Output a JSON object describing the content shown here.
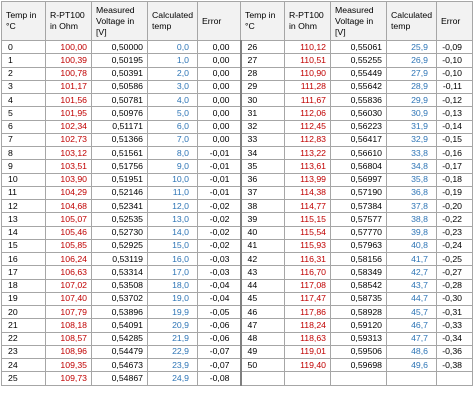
{
  "headers": [
    "Temp in °C",
    "R-PT100 in Ohm",
    "Measured Voltage in [V]",
    "Calculated temp",
    "Error",
    "Temp in °C",
    "R-PT100 in Ohm",
    "Measured Voltage in [V]",
    "Calculated temp",
    "Error"
  ],
  "colors": {
    "resistance": "#c00000",
    "calculated": "#2e75b6",
    "border": "#a6a6a6",
    "header_bg": "#f2f2f2"
  },
  "left_rows": [
    [
      "0",
      "100,00",
      "0,50000",
      "0,0",
      "0,00"
    ],
    [
      "1",
      "100,39",
      "0,50195",
      "1,0",
      "0,00"
    ],
    [
      "2",
      "100,78",
      "0,50391",
      "2,0",
      "0,00"
    ],
    [
      "3",
      "101,17",
      "0,50586",
      "3,0",
      "0,00"
    ],
    [
      "4",
      "101,56",
      "0,50781",
      "4,0",
      "0,00"
    ],
    [
      "5",
      "101,95",
      "0,50976",
      "5,0",
      "0,00"
    ],
    [
      "6",
      "102,34",
      "0,51171",
      "6,0",
      "0,00"
    ],
    [
      "7",
      "102,73",
      "0,51366",
      "7,0",
      "0,00"
    ],
    [
      "8",
      "103,12",
      "0,51561",
      "8,0",
      "-0,01"
    ],
    [
      "9",
      "103,51",
      "0,51756",
      "9,0",
      "-0,01"
    ],
    [
      "10",
      "103,90",
      "0,51951",
      "10,0",
      "-0,01"
    ],
    [
      "11",
      "104,29",
      "0,52146",
      "11,0",
      "-0,01"
    ],
    [
      "12",
      "104,68",
      "0,52341",
      "12,0",
      "-0,02"
    ],
    [
      "13",
      "105,07",
      "0,52535",
      "13,0",
      "-0,02"
    ],
    [
      "14",
      "105,46",
      "0,52730",
      "14,0",
      "-0,02"
    ],
    [
      "15",
      "105,85",
      "0,52925",
      "15,0",
      "-0,02"
    ],
    [
      "16",
      "106,24",
      "0,53119",
      "16,0",
      "-0,03"
    ],
    [
      "17",
      "106,63",
      "0,53314",
      "17,0",
      "-0,03"
    ],
    [
      "18",
      "107,02",
      "0,53508",
      "18,0",
      "-0,04"
    ],
    [
      "19",
      "107,40",
      "0,53702",
      "19,0",
      "-0,04"
    ],
    [
      "20",
      "107,79",
      "0,53896",
      "19,9",
      "-0,05"
    ],
    [
      "21",
      "108,18",
      "0,54091",
      "20,9",
      "-0,06"
    ],
    [
      "22",
      "108,57",
      "0,54285",
      "21,9",
      "-0,06"
    ],
    [
      "23",
      "108,96",
      "0,54479",
      "22,9",
      "-0,07"
    ],
    [
      "24",
      "109,35",
      "0,54673",
      "23,9",
      "-0,07"
    ],
    [
      "25",
      "109,73",
      "0,54867",
      "24,9",
      "-0,08"
    ]
  ],
  "right_rows": [
    [
      "26",
      "110,12",
      "0,55061",
      "25,9",
      "-0,09"
    ],
    [
      "27",
      "110,51",
      "0,55255",
      "26,9",
      "-0,10"
    ],
    [
      "28",
      "110,90",
      "0,55449",
      "27,9",
      "-0,10"
    ],
    [
      "29",
      "111,28",
      "0,55642",
      "28,9",
      "-0,11"
    ],
    [
      "30",
      "111,67",
      "0,55836",
      "29,9",
      "-0,12"
    ],
    [
      "31",
      "112,06",
      "0,56030",
      "30,9",
      "-0,13"
    ],
    [
      "32",
      "112,45",
      "0,56223",
      "31,9",
      "-0,14"
    ],
    [
      "33",
      "112,83",
      "0,56417",
      "32,9",
      "-0,15"
    ],
    [
      "34",
      "113,22",
      "0,56610",
      "33,8",
      "-0,16"
    ],
    [
      "35",
      "113,61",
      "0,56804",
      "34,8",
      "-0,17"
    ],
    [
      "36",
      "113,99",
      "0,56997",
      "35,8",
      "-0,18"
    ],
    [
      "37",
      "114,38",
      "0,57190",
      "36,8",
      "-0,19"
    ],
    [
      "38",
      "114,77",
      "0,57384",
      "37,8",
      "-0,20"
    ],
    [
      "39",
      "115,15",
      "0,57577",
      "38,8",
      "-0,22"
    ],
    [
      "40",
      "115,54",
      "0,57770",
      "39,8",
      "-0,23"
    ],
    [
      "41",
      "115,93",
      "0,57963",
      "40,8",
      "-0,24"
    ],
    [
      "42",
      "116,31",
      "0,58156",
      "41,7",
      "-0,25"
    ],
    [
      "43",
      "116,70",
      "0,58349",
      "42,7",
      "-0,27"
    ],
    [
      "44",
      "117,08",
      "0,58542",
      "43,7",
      "-0,28"
    ],
    [
      "45",
      "117,47",
      "0,58735",
      "44,7",
      "-0,30"
    ],
    [
      "46",
      "117,86",
      "0,58928",
      "45,7",
      "-0,31"
    ],
    [
      "47",
      "118,24",
      "0,59120",
      "46,7",
      "-0,33"
    ],
    [
      "48",
      "118,63",
      "0,59313",
      "47,7",
      "-0,34"
    ],
    [
      "49",
      "119,01",
      "0,59506",
      "48,6",
      "-0,36"
    ],
    [
      "50",
      "119,40",
      "0,59698",
      "49,6",
      "-0,38"
    ]
  ]
}
